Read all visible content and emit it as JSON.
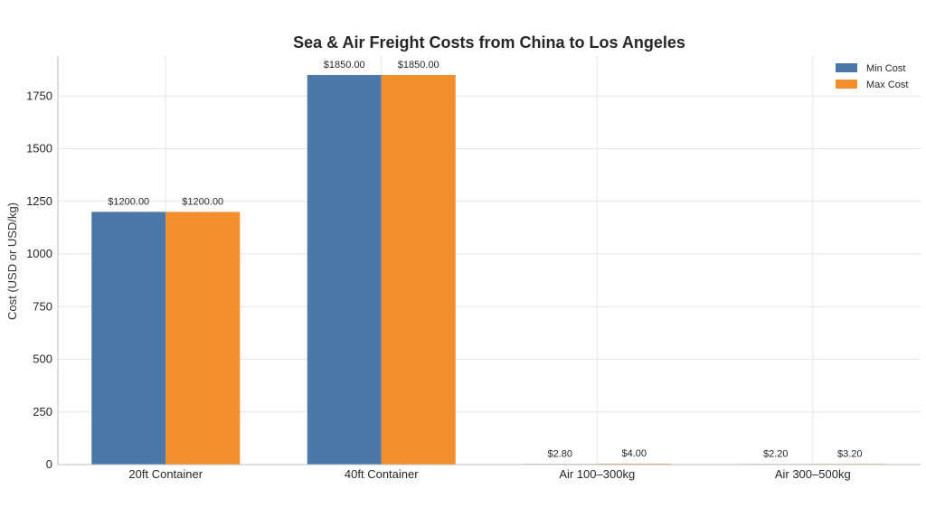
{
  "chart_data": {
    "type": "bar",
    "title": "Sea & Air Freight Costs from China to Los Angeles",
    "xlabel": "",
    "ylabel": "Cost (USD or USD/kg)",
    "categories": [
      "20ft Container",
      "40ft Container",
      "Air 100–300kg",
      "Air 300–500kg"
    ],
    "series": [
      {
        "name": "Min Cost",
        "color": "#4c78a8",
        "values": [
          1200,
          1850,
          2.8,
          2.2
        ],
        "labels": [
          "$1200.00",
          "$1850.00",
          "$2.80",
          "$2.20"
        ]
      },
      {
        "name": "Max Cost",
        "color": "#f28e2b",
        "values": [
          1200,
          1850,
          4.0,
          3.2
        ],
        "labels": [
          "$1200.00",
          "$1850.00",
          "$4.00",
          "$3.20"
        ]
      }
    ],
    "ylim": [
      0,
      1940
    ],
    "yticks": [
      0,
      250,
      500,
      750,
      1000,
      1250,
      1500,
      1750
    ],
    "grid": true,
    "legend_position": "top-right"
  }
}
